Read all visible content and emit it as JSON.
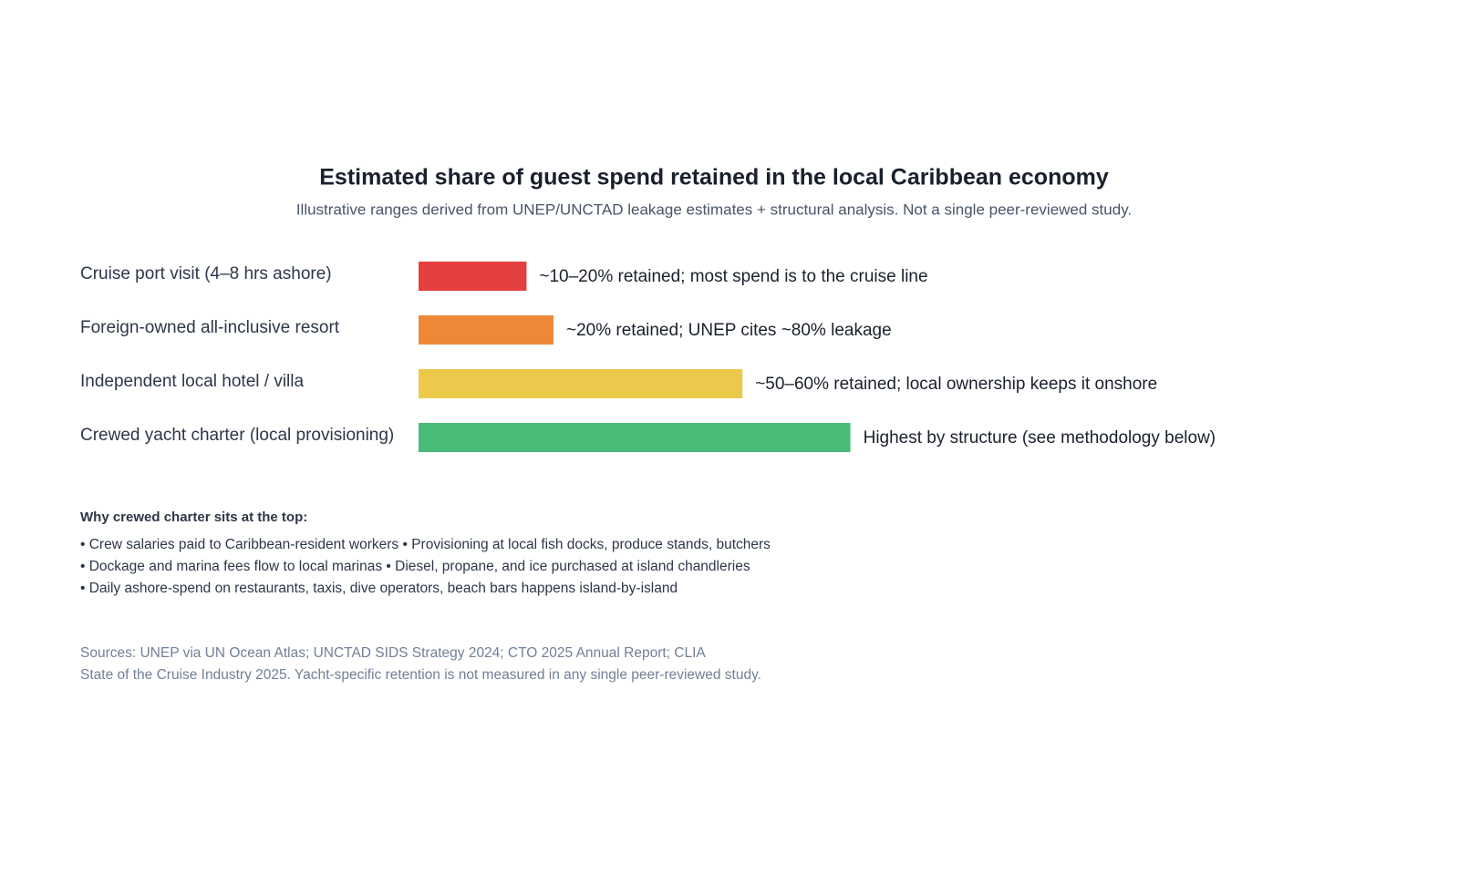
{
  "chart_data": {
    "type": "hbar",
    "title": "Estimated share of guest spend retained in the local Caribbean economy",
    "subtitle": "Illustrative ranges derived from UNEP/UNCTAD leakage estimates + structural analysis. Not a single peer-reviewed study.",
    "categories": [
      "Cruise port visit (4–8 hrs ashore)",
      "Foreign-owned all-inclusive resort",
      "Independent local hotel / villa",
      "Crewed yacht charter (local provisioning)"
    ],
    "values": [
      16,
      20,
      48,
      64
    ],
    "value_labels": [
      "~10–20% retained; most spend is to the cruise line",
      "~20% retained; UNEP cites ~80% leakage",
      "~50–60% retained; local ownership keeps it onshore",
      "Highest by structure (see methodology below)"
    ],
    "colors": [
      "#e53e3e",
      "#ed8936",
      "#ecc94b",
      "#48bb78"
    ],
    "xlim": [
      0,
      100
    ]
  },
  "notes": {
    "title": "Why crewed charter sits at the top:",
    "items": [
      "• Crew salaries paid to Caribbean-resident workers • Provisioning at local fish docks, produce stands, butchers",
      "• Dockage and marina fees flow to local marinas • Diesel, propane, and ice purchased at island chandleries",
      "• Daily ashore-spend on restaurants, taxis, dive operators, beach bars happens island-by-island"
    ]
  },
  "sources": [
    "Sources: UNEP via UN Ocean Atlas; UNCTAD SIDS Strategy 2024; CTO 2025 Annual Report; CLIA",
    "State of the Cruise Industry 2025. Yacht-specific retention is not measured in any single peer-reviewed study."
  ]
}
